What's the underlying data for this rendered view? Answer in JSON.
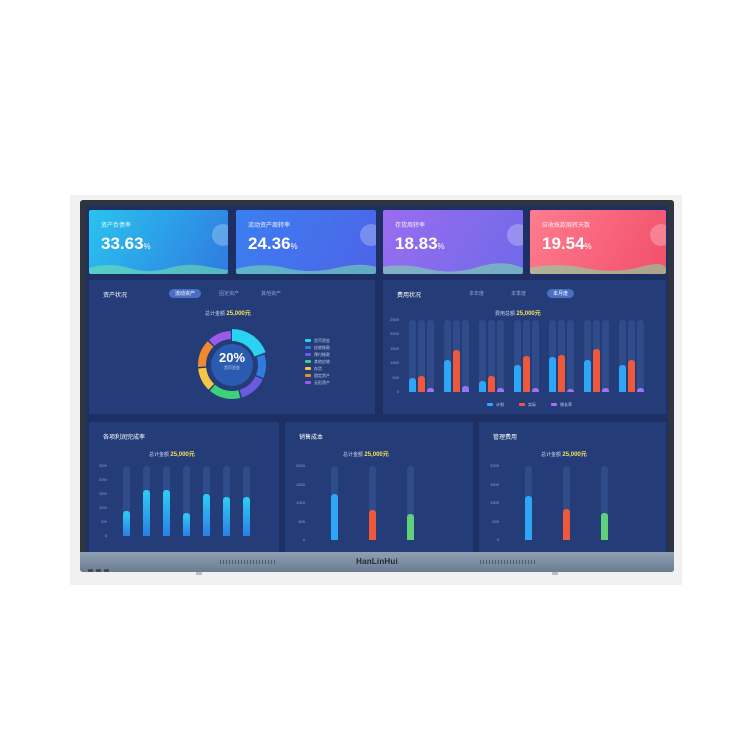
{
  "device": {
    "brand": "HanLinHui"
  },
  "kpis": [
    {
      "title": "资产负债率",
      "value": "33.63",
      "unit": "%",
      "gradient": [
        "#2ac3f0",
        "#2f7be0"
      ]
    },
    {
      "title": "流动资产周转率",
      "value": "24.36",
      "unit": "%",
      "gradient": [
        "#3b7ff0",
        "#4e63e8"
      ]
    },
    {
      "title": "存货周转率",
      "value": "18.83",
      "unit": "%",
      "gradient": [
        "#9a6cf0",
        "#6f6ae8"
      ]
    },
    {
      "title": "应收账款周转天数",
      "value": "19.54",
      "unit": "%",
      "gradient": [
        "#ff7c8e",
        "#f14f6a"
      ]
    }
  ],
  "panel_assets": {
    "title": "资产状况",
    "tabs": [
      "流动资产",
      "固定资产",
      "其他资产"
    ],
    "total_label": "总计金额",
    "total_value": "25,000元",
    "center_value": "20%",
    "center_label": "货币资金",
    "legend": [
      "货币资金",
      "应收账款",
      "预付账款",
      "其他应收",
      "存货",
      "固定资产",
      "无形资产"
    ],
    "colors": [
      "#2ad3f0",
      "#2f7be0",
      "#6a5ae0",
      "#3fd07a",
      "#f6c544",
      "#f08a2e",
      "#9b5ae8"
    ]
  },
  "panel_cost": {
    "title": "费用状况",
    "tabs": [
      "本年度",
      "本季度",
      "本月度"
    ],
    "total_label": "费用总额",
    "total_value": "25,000元",
    "yticks": [
      "2500",
      "2000",
      "1500",
      "1000",
      "500",
      "0"
    ],
    "legend": [
      "计划",
      "实际",
      "增长率"
    ],
    "colors": [
      "#2ea6f7",
      "#f0583c",
      "#9d73f5"
    ]
  },
  "panel_profit": {
    "title": "各项利润完成率",
    "total_label": "总计金额",
    "total_value": "25,000元",
    "yticks": [
      "25%",
      "20%",
      "15%",
      "10%",
      "5%",
      "0"
    ]
  },
  "panel_sales": {
    "title": "销售成本",
    "total_label": "总计金额",
    "total_value": "25,000元",
    "yticks": [
      "2000",
      "1500",
      "1000",
      "500",
      "0"
    ],
    "bar_colors": [
      "#2ea6f7",
      "#f0583c",
      "#5fd17a"
    ]
  },
  "panel_mgmt": {
    "title": "管理费用",
    "total_label": "总计金额",
    "total_value": "25,000元",
    "yticks": [
      "2000",
      "1500",
      "1000",
      "500",
      "0"
    ],
    "bar_colors": [
      "#2ea6f7",
      "#f0583c",
      "#5fd17a"
    ]
  }
}
